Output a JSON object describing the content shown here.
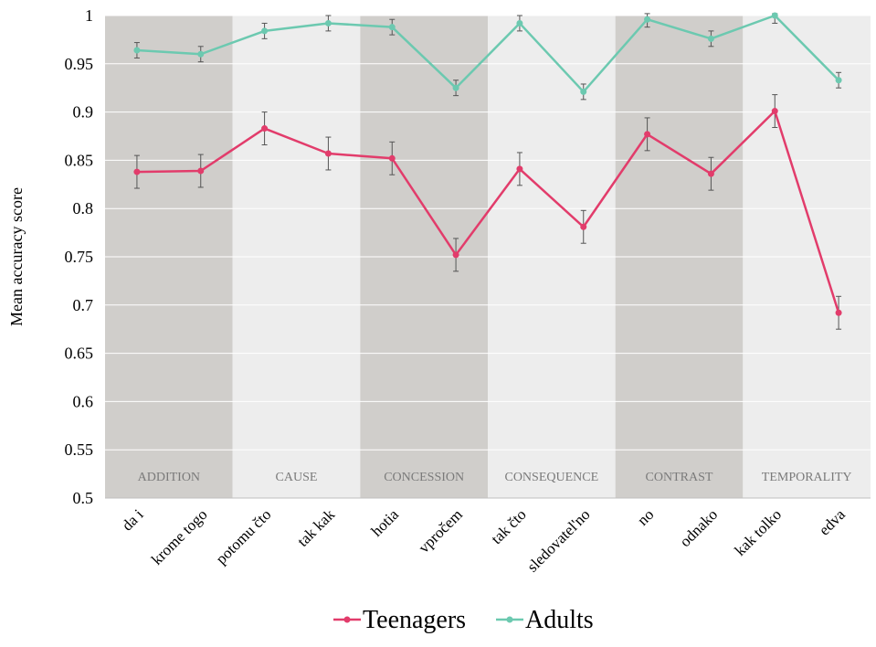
{
  "chart_data": {
    "type": "line",
    "ylabel": "Mean accuracy score",
    "ylim": [
      0.5,
      1.0
    ],
    "yticks": [
      "0.5",
      "0.55",
      "0.6",
      "0.65",
      "0.7",
      "0.75",
      "0.8",
      "0.85",
      "0.9",
      "0.95",
      "1"
    ],
    "grid": true,
    "legend_position": "bottom",
    "categories": [
      "da i",
      "krome togo",
      "potomu čto",
      "tak kak",
      "hotia",
      "vpročem",
      "tak čto",
      "sledovatel'no",
      "no",
      "odnako",
      "kak tolko",
      "edva"
    ],
    "groups": [
      {
        "label": "ADDITION",
        "start": 0,
        "end": 1,
        "shade": "dark"
      },
      {
        "label": "CAUSE",
        "start": 2,
        "end": 3,
        "shade": "light"
      },
      {
        "label": "CONCESSION",
        "start": 4,
        "end": 5,
        "shade": "dark"
      },
      {
        "label": "CONSEQUENCE",
        "start": 6,
        "end": 7,
        "shade": "light"
      },
      {
        "label": "CONTRAST",
        "start": 8,
        "end": 9,
        "shade": "dark"
      },
      {
        "label": "TEMPORALITY",
        "start": 10,
        "end": 11,
        "shade": "light"
      }
    ],
    "series": [
      {
        "name": "Teenagers",
        "color": "#e23c6b",
        "values": [
          0.838,
          0.839,
          0.883,
          0.857,
          0.852,
          0.752,
          0.841,
          0.781,
          0.877,
          0.836,
          0.901,
          0.692
        ],
        "errors": [
          0.017,
          0.017,
          0.017,
          0.017,
          0.017,
          0.017,
          0.017,
          0.017,
          0.017,
          0.017,
          0.017,
          0.017
        ]
      },
      {
        "name": "Adults",
        "color": "#6cc9b0",
        "values": [
          0.964,
          0.96,
          0.984,
          0.992,
          0.988,
          0.925,
          0.992,
          0.921,
          0.996,
          0.976,
          1.0,
          0.933
        ],
        "errors": [
          0.008,
          0.008,
          0.008,
          0.008,
          0.008,
          0.008,
          0.008,
          0.008,
          0.008,
          0.008,
          0.008,
          0.008
        ]
      }
    ],
    "colors": {
      "band_dark": "#d0cecb",
      "band_light": "#ededed",
      "grid": "#ffffff",
      "error_bar": "#555555",
      "group_label": "#7a7a7a"
    }
  }
}
